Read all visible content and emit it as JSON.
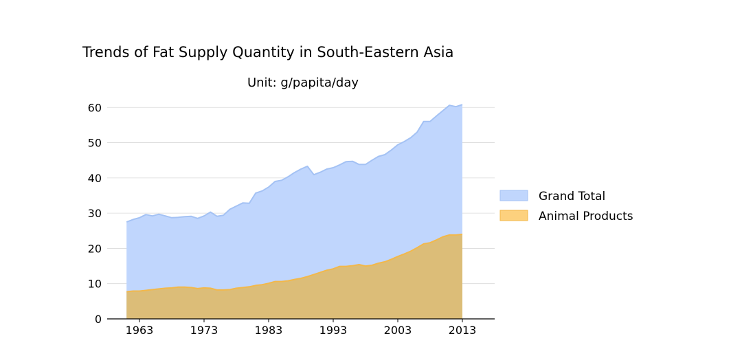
{
  "chart_data": {
    "type": "area",
    "title": "Trends of Fat Supply Quantity in South-Eastern Asia",
    "subtitle": "Unit: g/papita/day",
    "xlabel": "",
    "ylabel": "",
    "xlim": [
      1958,
      2018
    ],
    "ylim": [
      0,
      62
    ],
    "x_ticks": [
      1963,
      1973,
      1983,
      1993,
      2003,
      2013
    ],
    "y_ticks": [
      0,
      10,
      20,
      30,
      40,
      50,
      60
    ],
    "grid": "horizontal",
    "legend_position": "right",
    "x": [
      1961,
      1962,
      1963,
      1964,
      1965,
      1966,
      1967,
      1968,
      1969,
      1970,
      1971,
      1972,
      1973,
      1974,
      1975,
      1976,
      1977,
      1978,
      1979,
      1980,
      1981,
      1982,
      1983,
      1984,
      1985,
      1986,
      1987,
      1988,
      1989,
      1990,
      1991,
      1992,
      1993,
      1994,
      1995,
      1996,
      1997,
      1998,
      1999,
      2000,
      2001,
      2002,
      2003,
      2004,
      2005,
      2006,
      2007,
      2008,
      2009,
      2010,
      2011,
      2012,
      2013
    ],
    "series": [
      {
        "name": "Grand Total",
        "color": "#a4c2f4",
        "fill": "#c0d6fd",
        "values": [
          27.5,
          28.2,
          28.7,
          29.6,
          29.2,
          29.7,
          29.2,
          28.7,
          28.8,
          29.0,
          29.1,
          28.5,
          29.2,
          30.3,
          29.1,
          29.4,
          31.1,
          32.0,
          32.9,
          32.8,
          35.7,
          36.3,
          37.4,
          39.0,
          39.3,
          40.3,
          41.5,
          42.5,
          43.3,
          40.9,
          41.6,
          42.5,
          42.9,
          43.7,
          44.6,
          44.7,
          43.8,
          43.8,
          45.0,
          46.1,
          46.6,
          47.9,
          49.4,
          50.3,
          51.4,
          53.0,
          56.0,
          56.0,
          57.6,
          59.1,
          60.6,
          60.2,
          60.8
        ]
      },
      {
        "name": "Animal Products",
        "color": "#f2b84b",
        "fill": "#dcbd78",
        "values": [
          7.7,
          7.9,
          7.9,
          8.1,
          8.3,
          8.5,
          8.7,
          8.8,
          9.0,
          9.0,
          8.9,
          8.6,
          8.8,
          8.7,
          8.2,
          8.2,
          8.3,
          8.7,
          8.9,
          9.1,
          9.5,
          9.7,
          10.1,
          10.6,
          10.6,
          10.8,
          11.2,
          11.5,
          12.0,
          12.6,
          13.2,
          13.8,
          14.2,
          14.9,
          14.9,
          15.1,
          15.4,
          15.0,
          15.2,
          15.8,
          16.2,
          16.9,
          17.7,
          18.4,
          19.2,
          20.2,
          21.3,
          21.6,
          22.4,
          23.3,
          23.8,
          23.8,
          24.0
        ]
      }
    ]
  }
}
